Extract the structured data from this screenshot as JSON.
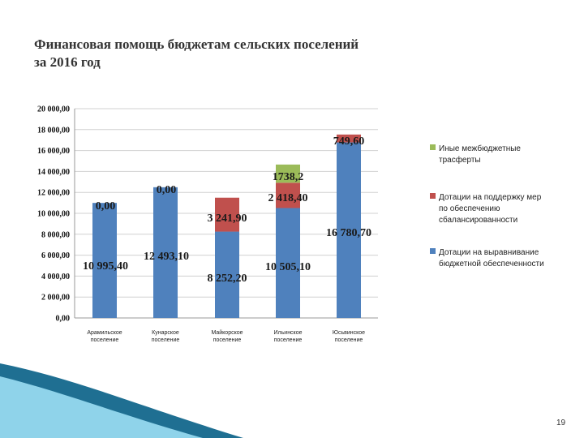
{
  "slide": {
    "title": "Финансовая помощь бюджетам сельских поселений\nза 2016 год",
    "page_number": "19"
  },
  "colors": {
    "blue": "#4f81bd",
    "red": "#c0504d",
    "green": "#9bbb59",
    "grid": "#d0d0d0",
    "wave_dark": "#1f6f92",
    "wave_light": "#8fd3ea"
  },
  "chart_data": {
    "type": "bar",
    "stacked": true,
    "categories": [
      "Арамильское поселение",
      "Кунарское поселение",
      "Майкорское поселение",
      "Ильинское поселение",
      "Юсьвинское поселение"
    ],
    "series": [
      {
        "name": "Дотации на выравнивание бюджетной обеспеченности",
        "color": "#4f81bd",
        "values": [
          10995.4,
          12493.1,
          8252.2,
          10505.1,
          16780.7
        ],
        "labels": [
          "10 995,40",
          "12 493,10",
          "8 252,20",
          "10 505,10",
          "16 780,70"
        ]
      },
      {
        "name": "Дотации на поддержку мер по обеспечению сбалансированности",
        "color": "#c0504d",
        "values": [
          0,
          0,
          3241.9,
          2418.4,
          749.6
        ],
        "labels": [
          "0,00",
          "0,00",
          "3 241,90",
          "2 418,40",
          "749,60"
        ]
      },
      {
        "name": "Иные межбюджетные трасферты",
        "color": "#9bbb59",
        "values": [
          null,
          null,
          null,
          1738.2,
          null
        ],
        "labels": [
          null,
          null,
          null,
          "1738,2",
          null
        ]
      }
    ],
    "y_ticks": [
      "0,00",
      "2 000,00",
      "4 000,00",
      "6 000,00",
      "8 000,00",
      "10 000,00",
      "12 000,00",
      "14 000,00",
      "16 000,00",
      "18 000,00",
      "20 000,00"
    ],
    "ylim": [
      0,
      20000
    ],
    "grid": true,
    "legend_position": "right"
  }
}
